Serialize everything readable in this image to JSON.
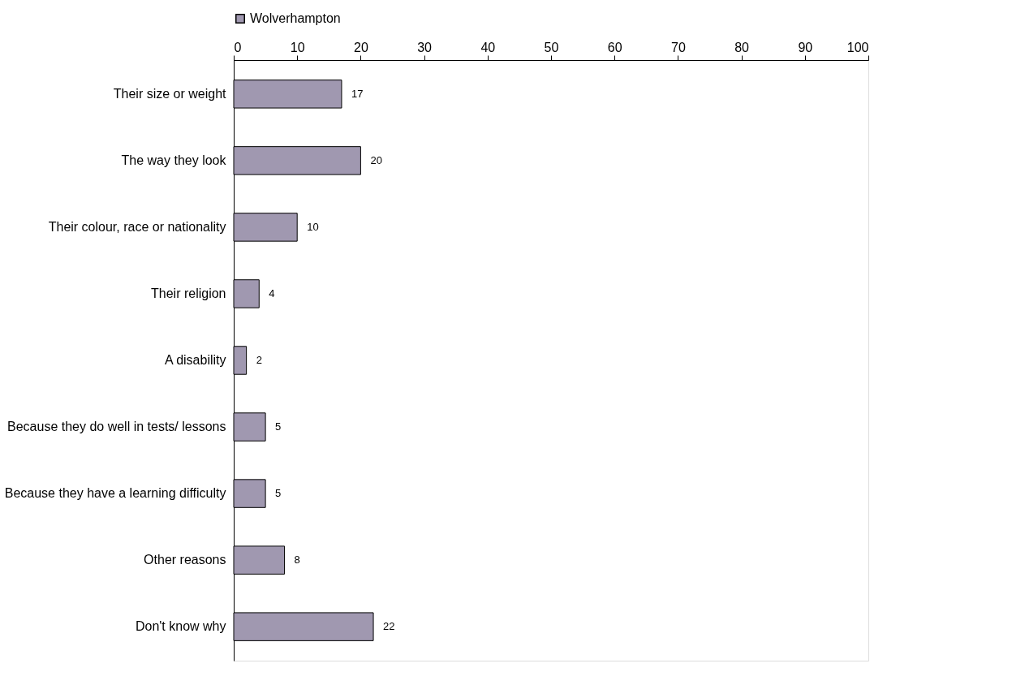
{
  "chart_data": {
    "type": "bar",
    "orientation": "horizontal",
    "categories": [
      "Their size or weight",
      "The way they look",
      "Their colour, race or nationality",
      "Their religion",
      "A disability",
      "Because they do well in tests/ lessons",
      "Because they have a learning difficulty",
      "Other reasons",
      "Don't know why"
    ],
    "series": [
      {
        "name": "Wolverhampton",
        "color": "#a098b0",
        "values": [
          17,
          20,
          10,
          4,
          2,
          5,
          5,
          8,
          22
        ]
      }
    ],
    "xlim": [
      0,
      100
    ],
    "xticks": [
      0,
      10,
      20,
      30,
      40,
      50,
      60,
      70,
      80,
      90,
      100
    ],
    "data_labels": true,
    "legend": "top",
    "grid": false
  }
}
